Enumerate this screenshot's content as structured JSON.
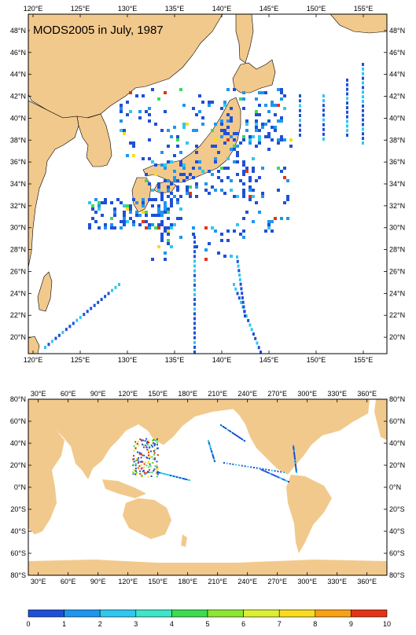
{
  "title": "MODS2005 in July, 1987",
  "colors": {
    "land": "#f2c98c",
    "ocean": "#ffffff",
    "frame": "#000000"
  },
  "top_map": {
    "name": "japan-region-map",
    "lon_range": [
      119.5,
      157.5
    ],
    "lat_range": [
      18.5,
      49.5
    ],
    "lon_ticks": [
      "120°E",
      "125°E",
      "130°E",
      "135°E",
      "140°E",
      "145°E",
      "150°E",
      "155°E"
    ],
    "lat_ticks": [
      "20°N",
      "22°N",
      "24°N",
      "26°N",
      "28°N",
      "30°N",
      "32°N",
      "34°N",
      "36°N",
      "38°N",
      "40°N",
      "42°N",
      "44°N",
      "46°N",
      "48°N"
    ]
  },
  "bottom_map": {
    "name": "global-map",
    "lon_range": [
      20,
      380
    ],
    "lat_range": [
      -80,
      80
    ],
    "lon_ticks": [
      "30°E",
      "60°E",
      "90°E",
      "120°E",
      "150°E",
      "180°E",
      "210°E",
      "240°E",
      "270°E",
      "300°E",
      "330°E",
      "360°E"
    ],
    "lat_ticks": [
      "80°S",
      "60°S",
      "40°S",
      "20°S",
      "0°N",
      "20°N",
      "40°N",
      "60°N",
      "80°N"
    ]
  },
  "colorbar": {
    "labels": [
      "0",
      "1",
      "2",
      "3",
      "4",
      "5",
      "6",
      "7",
      "8",
      "9",
      "10"
    ],
    "colors": [
      "#1e50d8",
      "#1e96f0",
      "#2ec8f0",
      "#3ce6c8",
      "#3cdc50",
      "#8ce632",
      "#dcf032",
      "#fadc1e",
      "#faa014",
      "#e63214"
    ]
  }
}
